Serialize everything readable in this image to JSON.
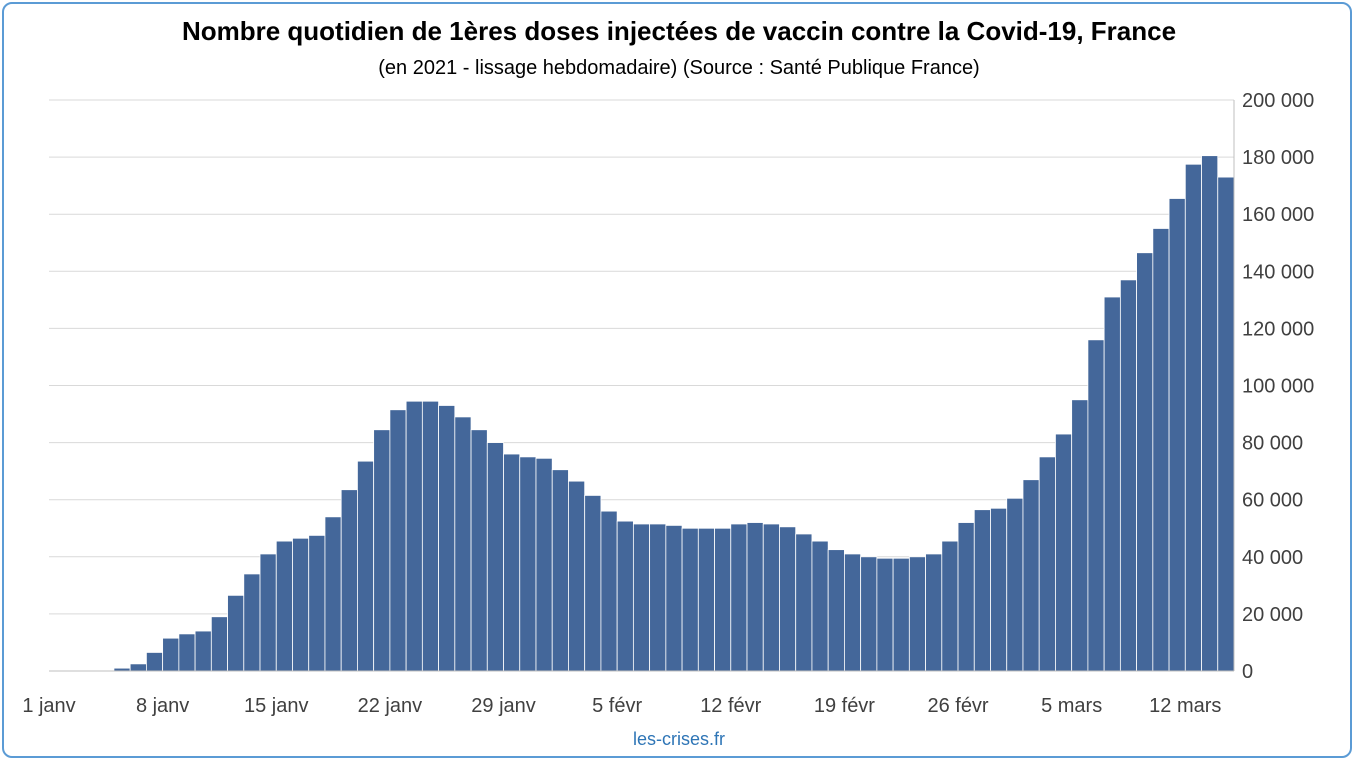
{
  "title": "Nombre quotidien de 1ères doses injectées de vaccin contre la Covid-19, France",
  "subtitle": "(en 2021 - lissage hebdomadaire) (Source : Santé Publique France)",
  "source": "les-crises.fr",
  "colors": {
    "bar": "#44679a",
    "grid": "#d9d9d9",
    "frame": "#5b9bd5"
  },
  "chart_data": {
    "type": "bar",
    "title": "Nombre quotidien de 1ères doses injectées de vaccin contre la Covid-19, France",
    "subtitle": "(en 2021 - lissage hebdomadaire) (Source : Santé Publique France)",
    "xlabel": "",
    "ylabel": "",
    "ylim": [
      0,
      200000
    ],
    "yticks": [
      0,
      20000,
      40000,
      60000,
      80000,
      100000,
      120000,
      140000,
      160000,
      180000,
      200000
    ],
    "ytick_labels": [
      "0",
      "20 000",
      "40 000",
      "60 000",
      "80 000",
      "100 000",
      "120 000",
      "140 000",
      "160 000",
      "180 000",
      "200 000"
    ],
    "grid": true,
    "y_axis_side": "right",
    "x_tick_labels": [
      {
        "day": 1,
        "label": "1 janv"
      },
      {
        "day": 8,
        "label": "8 janv"
      },
      {
        "day": 15,
        "label": "15 janv"
      },
      {
        "day": 22,
        "label": "22 janv"
      },
      {
        "day": 29,
        "label": "29 janv"
      },
      {
        "day": 36,
        "label": "5 févr"
      },
      {
        "day": 43,
        "label": "12 févr"
      },
      {
        "day": 50,
        "label": "19 févr"
      },
      {
        "day": 57,
        "label": "26 févr"
      },
      {
        "day": 64,
        "label": "5 mars"
      },
      {
        "day": 71,
        "label": "12 mars"
      }
    ],
    "x_start": "2021-01-01",
    "values": [
      0,
      0,
      0,
      0,
      1000,
      2500,
      6500,
      11500,
      13000,
      14000,
      19000,
      26500,
      34000,
      41000,
      45500,
      46500,
      47500,
      54000,
      63500,
      73500,
      84500,
      91500,
      94500,
      94500,
      93000,
      89000,
      84500,
      80000,
      76000,
      75000,
      74500,
      70500,
      66500,
      61500,
      56000,
      52500,
      51500,
      51500,
      51000,
      50000,
      50000,
      50000,
      51500,
      52000,
      51500,
      50500,
      48000,
      45500,
      42500,
      41000,
      40000,
      39500,
      39500,
      40000,
      41000,
      45500,
      52000,
      56500,
      57000,
      60500,
      67000,
      75000,
      83000,
      95000,
      116000,
      131000,
      137000,
      146500,
      155000,
      165500,
      177500,
      180500,
      173000
    ]
  }
}
